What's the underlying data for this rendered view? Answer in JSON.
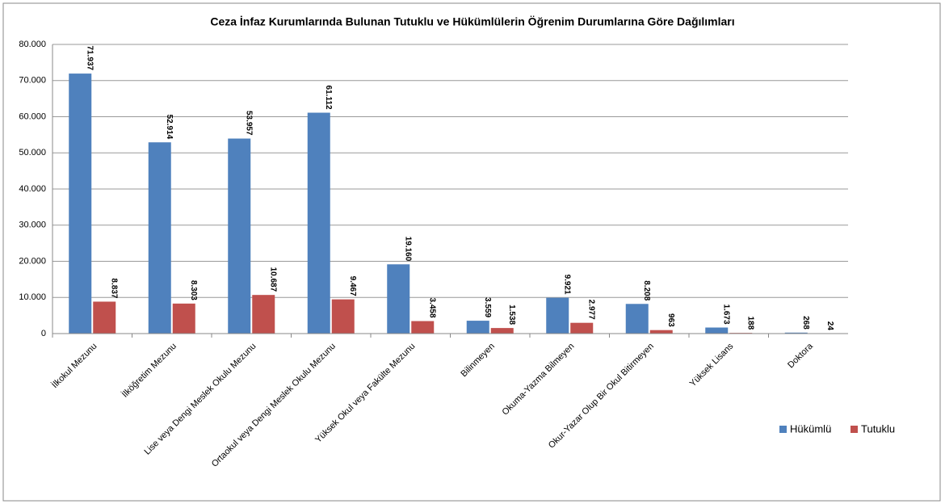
{
  "chart_data": {
    "type": "bar",
    "title": "Ceza İnfaz Kurumlarında Bulunan Tutuklu ve Hükümlülerin Öğrenim Durumlarına Göre Dağılımları",
    "categories": [
      "İlkokul Mezunu",
      "İlköğretim Mezunu",
      "Lise veya Dengi Meslek Okulu Mezunu",
      "Ortaokul veya Dengi Meslek Okulu Mezunu",
      "Yüksek Okul veya Fakülte Mezunu",
      "Bilinmeyen",
      "Okuma-Yazma Bilmeyen",
      "Okur-Yazar Olup Bir Okul Bitirmeyen",
      "Yüksek Lisans",
      "Doktora"
    ],
    "series": [
      {
        "name": "Hükümlü",
        "color": "#4f81bd",
        "values": [
          71937,
          52914,
          53957,
          61112,
          19160,
          3559,
          9921,
          8208,
          1673,
          268
        ],
        "value_labels": [
          "71.937",
          "52.914",
          "53.957",
          "61.112",
          "19.160",
          "3.559",
          "9.921",
          "8.208",
          "1.673",
          "268"
        ]
      },
      {
        "name": "Tutuklu",
        "color": "#c0504d",
        "values": [
          8837,
          8303,
          10687,
          9467,
          3458,
          1538,
          2977,
          963,
          188,
          24
        ],
        "value_labels": [
          "8.837",
          "8.303",
          "10.687",
          "9.467",
          "3.458",
          "1.538",
          "2.977",
          "963",
          "188",
          "24"
        ]
      }
    ],
    "ylim": [
      0,
      80000
    ],
    "yticks": [
      0,
      {
        "value": 10000,
        "label": "10.000"
      },
      {
        "value": 20000,
        "label": "20.000"
      },
      {
        "value": 30000,
        "label": "30.000"
      },
      {
        "value": 40000,
        "label": "40.000"
      },
      {
        "value": 50000,
        "label": "50.000"
      },
      {
        "value": 60000,
        "label": "60.000"
      },
      {
        "value": 70000,
        "label": "70.000"
      },
      {
        "value": 80000,
        "label": "80.000"
      }
    ],
    "grid": true,
    "legend": "right"
  }
}
